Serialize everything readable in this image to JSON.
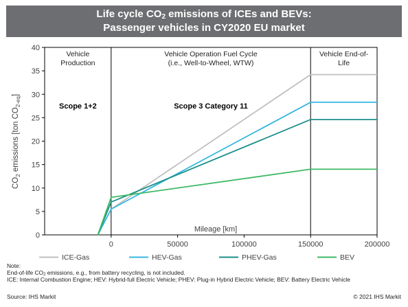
{
  "header": {
    "title_line1_pre": "Life cycle CO",
    "title_line1_sub": "2",
    "title_line1_post": " emissions of ICEs and BEVs:",
    "title_line2": "Passenger vehicles in CY2020 EU market"
  },
  "chart_data": {
    "type": "line",
    "title": "Life cycle CO2 emissions of ICEs and BEVs: Passenger vehicles in CY2020 EU market",
    "xlabel": "Mileage [km]",
    "ylabel_pre": "CO",
    "ylabel_sub": "2",
    "ylabel_mid": " emissions [ton CO",
    "ylabel_sub2": "2-eq",
    "ylabel_post": "]",
    "xlim": [
      -50000,
      200000
    ],
    "ylim": [
      0,
      40
    ],
    "x_ticks": [
      0,
      50000,
      100000,
      150000,
      200000
    ],
    "x_tick_labels": [
      "0",
      "50000",
      "100000",
      "150000",
      "200000"
    ],
    "y_ticks": [
      0,
      5,
      10,
      15,
      20,
      25,
      30,
      35,
      40
    ],
    "y_tick_labels": [
      "0",
      "5",
      "10",
      "15",
      "20",
      "25",
      "30",
      "35",
      "40"
    ],
    "grid": false,
    "legend_position": "bottom",
    "phase_boundaries": [
      0,
      150000
    ],
    "phases": [
      {
        "label_line1": "Vehicle",
        "label_line2": "Production",
        "scope": "Scope 1+2"
      },
      {
        "label_line1": "Vehicle Operation Fuel Cycle",
        "label_line2": "(i.e., Well-to-Wheel, WTW)",
        "scope": "Scope 3 Category 11"
      },
      {
        "label_line1": "Vehicle End-of-",
        "label_line2": "Life",
        "scope": ""
      }
    ],
    "series": [
      {
        "name": "ICE-Gas",
        "color": "#bfbfbf",
        "points": [
          [
            -10000,
            0
          ],
          [
            0,
            5.5
          ],
          [
            150000,
            34.2
          ],
          [
            200000,
            34.2
          ]
        ]
      },
      {
        "name": "HEV-Gas",
        "color": "#35b6e0",
        "points": [
          [
            -10000,
            0
          ],
          [
            0,
            5.5
          ],
          [
            150000,
            28.3
          ],
          [
            200000,
            28.3
          ]
        ]
      },
      {
        "name": "PHEV-Gas",
        "color": "#1b8e8a",
        "points": [
          [
            -10000,
            0
          ],
          [
            0,
            7.0
          ],
          [
            150000,
            24.6
          ],
          [
            200000,
            24.6
          ]
        ]
      },
      {
        "name": "BEV",
        "color": "#3cb964",
        "points": [
          [
            -10000,
            0
          ],
          [
            0,
            8.0
          ],
          [
            150000,
            14.0
          ],
          [
            200000,
            14.0
          ]
        ]
      }
    ]
  },
  "notes": {
    "heading": "Note:",
    "line1_pre": "End-of-life CO",
    "line1_sub": "2",
    "line1_post": " emissions, e.g., from battery recycling, is not included.",
    "line2": "ICE: Internal Combustion Engine; HEV: Hybrid-full Electric Vehicle; PHEV: Plug-in Hybrid Electric Vehicle; BEV: Battery Electric Vehicle"
  },
  "footer": {
    "source": "Source: IHS Markit",
    "copyright": "© 2021 IHS Markit"
  }
}
